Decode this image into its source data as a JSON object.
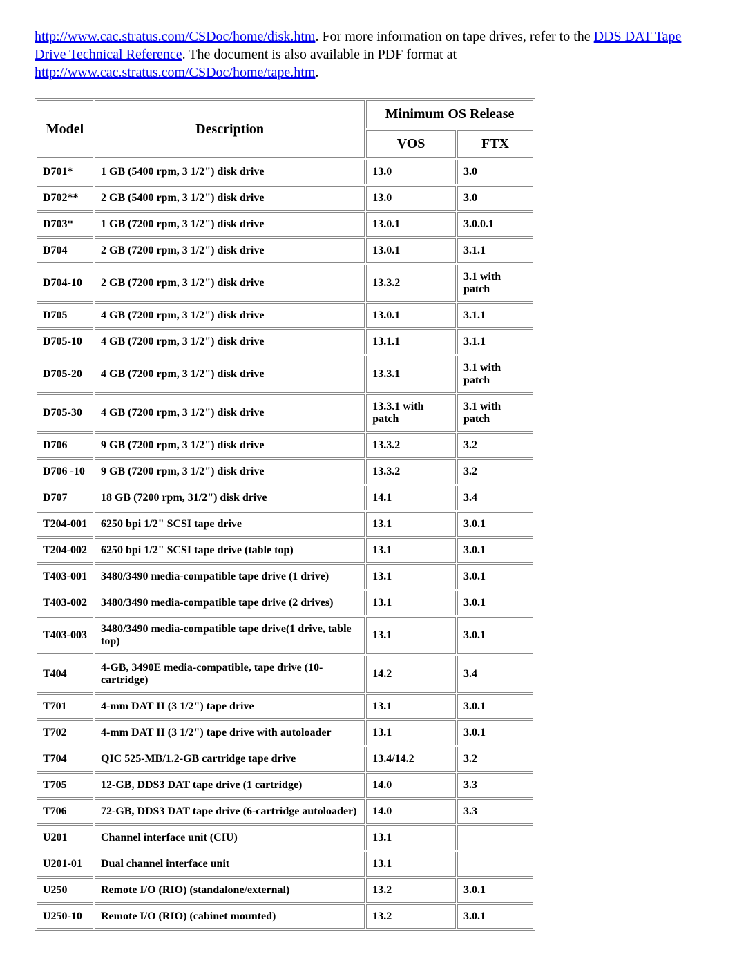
{
  "intro": {
    "link1_text": "http://www.cac.stratus.com/CSDoc/home/disk.htm",
    "text1": ". For more information on tape drives, refer to the ",
    "link2_text": "DDS DAT Tape Drive Technical Reference",
    "text2": ". The document is also available in PDF format at ",
    "link3_text": "http://www.cac.stratus.com/CSDoc/home/tape.htm",
    "text3": "."
  },
  "table": {
    "headers": {
      "model": "Model",
      "description": "Description",
      "min_os": "Minimum OS Release",
      "vos": "VOS",
      "ftx": "FTX"
    },
    "rows": [
      {
        "model": "D701*",
        "desc": "1 GB (5400 rpm, 3 1/2\") disk drive",
        "vos": "13.0",
        "ftx": "3.0"
      },
      {
        "model": "D702**",
        "desc": "2 GB (5400 rpm, 3 1/2\") disk drive",
        "vos": "13.0",
        "ftx": "3.0"
      },
      {
        "model": "D703*",
        "desc": "1 GB (7200 rpm, 3 1/2\") disk drive",
        "vos": "13.0.1",
        "ftx": "3.0.0.1"
      },
      {
        "model": "D704",
        "desc": "2 GB (7200 rpm, 3 1/2\") disk drive",
        "vos": "13.0.1",
        "ftx": "3.1.1"
      },
      {
        "model": "D704-10",
        "desc": "2 GB (7200 rpm, 3 1/2\") disk drive",
        "vos": "13.3.2",
        "ftx": "3.1 with patch"
      },
      {
        "model": "D705",
        "desc": "4 GB (7200 rpm, 3 1/2\") disk drive",
        "vos": "13.0.1",
        "ftx": "3.1.1"
      },
      {
        "model": "D705-10",
        "desc": "4 GB (7200 rpm, 3 1/2\") disk drive",
        "vos": "13.1.1",
        "ftx": "3.1.1"
      },
      {
        "model": "D705-20",
        "desc": "4 GB (7200 rpm, 3 1/2\") disk drive",
        "vos": "13.3.1",
        "ftx": "3.1 with patch"
      },
      {
        "model": "D705-30",
        "desc": "4 GB (7200 rpm, 3 1/2\") disk drive",
        "vos": "13.3.1 with patch",
        "ftx": "3.1 with patch"
      },
      {
        "model": "D706",
        "desc": "9 GB (7200 rpm, 3 1/2\") disk drive",
        "vos": "13.3.2",
        "ftx": "3.2"
      },
      {
        "model": "D706 -10",
        "desc": "9 GB (7200 rpm, 3 1/2\") disk drive",
        "vos": "13.3.2",
        "ftx": "3.2"
      },
      {
        "model": "D707",
        "desc": "18 GB (7200 rpm, 31/2\") disk drive",
        "vos": "14.1",
        "ftx": "3.4"
      },
      {
        "model": "T204-001",
        "desc": "6250 bpi 1/2\" SCSI tape drive",
        "vos": "13.1",
        "ftx": "3.0.1"
      },
      {
        "model": "T204-002",
        "desc": "6250 bpi 1/2\" SCSI tape drive (table top)",
        "vos": "13.1",
        "ftx": "3.0.1"
      },
      {
        "model": "T403-001",
        "desc": "3480/3490 media-compatible tape drive (1 drive)",
        "vos": "13.1",
        "ftx": " 3.0.1"
      },
      {
        "model": "T403-002",
        "desc": "3480/3490 media-compatible tape drive (2 drives)",
        "vos": "13.1",
        "ftx": " 3.0.1"
      },
      {
        "model": "T403-003",
        "desc": "3480/3490 media-compatible tape drive(1 drive, table top)",
        "vos": "13.1",
        "ftx": " 3.0.1"
      },
      {
        "model": "T404",
        "desc": "4-GB, 3490E media-compatible, tape drive (10-cartridge)",
        "vos": "14.2",
        "ftx": "3.4"
      },
      {
        "model": "T701",
        "desc": "4-mm DAT II (3 1/2\") tape drive",
        "vos": "13.1",
        "ftx": " 3.0.1"
      },
      {
        "model": "T702",
        "desc": "4-mm DAT II (3 1/2\") tape drive with autoloader",
        "vos": "13.1",
        "ftx": " 3.0.1"
      },
      {
        "model": "T704",
        "desc": "QIC 525-MB/1.2-GB cartridge tape drive",
        "vos": "13.4/14.2",
        "ftx": " 3.2"
      },
      {
        "model": "T705",
        "desc": "12-GB, DDS3 DAT tape drive (1 cartridge)",
        "vos": "14.0",
        "ftx": "3.3"
      },
      {
        "model": "T706",
        "desc": "72-GB, DDS3 DAT tape drive (6-cartridge autoloader)",
        "vos": "14.0",
        "ftx": "3.3"
      },
      {
        "model": "U201",
        "desc": "Channel interface unit (CIU)",
        "vos": "13.1",
        "ftx": ""
      },
      {
        "model": "U201-01",
        "desc": "Dual channel interface unit",
        "vos": "13.1",
        "ftx": ""
      },
      {
        "model": "U250",
        "desc": "Remote I/O (RIO) (standalone/external)",
        "vos": "13.2",
        "ftx": " 3.0.1"
      },
      {
        "model": "U250-10",
        "desc": "Remote I/O (RIO) (cabinet mounted)",
        "vos": "13.2",
        "ftx": " 3.0.1"
      }
    ]
  }
}
